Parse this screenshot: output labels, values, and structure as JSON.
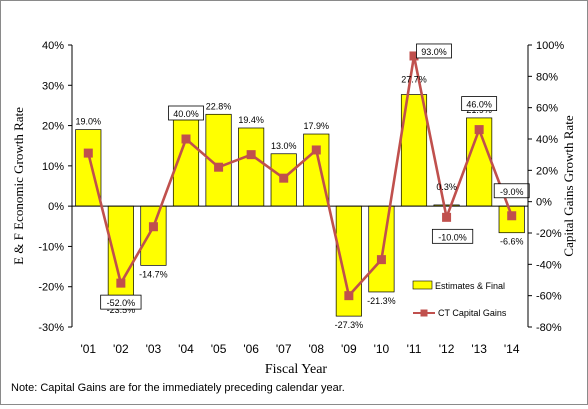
{
  "chart_data": {
    "type": "bar",
    "categories": [
      "'01",
      "'02",
      "'03",
      "'04",
      "'05",
      "'06",
      "'07",
      "'08",
      "'09",
      "'10",
      "'11",
      "'12",
      "'13",
      "'14"
    ],
    "series": [
      {
        "name": "Estimates & Final",
        "axis": "left",
        "type": "bar",
        "color": "#FFFF00",
        "values": [
          19.0,
          -23.5,
          -14.7,
          21.9,
          22.8,
          19.4,
          13.0,
          17.9,
          -27.3,
          -21.3,
          27.7,
          0.3,
          21.9,
          -6.6
        ],
        "labels": [
          "19.0%",
          "-23.5%",
          "-14.7%",
          "21.9%",
          "22.8%",
          "19.4%",
          "13.0%",
          "17.9%",
          "-27.3%",
          "-21.3%",
          "27.7%",
          "0.3%",
          "21.9%",
          "-6.6%"
        ]
      },
      {
        "name": "CT Capital Gains",
        "axis": "right",
        "type": "line",
        "color": "#C0504D",
        "values": [
          31,
          -52.0,
          -16,
          40.0,
          22,
          30,
          15,
          33,
          -60,
          -37,
          93.0,
          -10.0,
          46.0,
          -9.0
        ],
        "labels": [
          "",
          "-52.0%",
          "",
          "40.0%",
          "",
          "",
          "",
          "",
          "",
          "",
          "93.0%",
          "-10.0%",
          "46.0%",
          "-9.0%"
        ]
      }
    ],
    "xlabel": "Fiscal Year",
    "ylabel": "E & F Economic Growth Rate",
    "ylabel_right": "Capital Gains Growth Rate",
    "ylim": [
      -30,
      40
    ],
    "ylim_right": [
      -80,
      100
    ],
    "yticks": [
      "40%",
      "30%",
      "20%",
      "10%",
      "0%",
      "-10%",
      "-20%",
      "-30%"
    ],
    "yticks_right": [
      "100%",
      "80%",
      "60%",
      "40%",
      "20%",
      "0%",
      "-20%",
      "-40%",
      "-60%",
      "-80%"
    ],
    "grid": false,
    "legend_placement": "bottom-right",
    "note": "Note: Capital Gains are for the immediately preceding calendar year."
  }
}
